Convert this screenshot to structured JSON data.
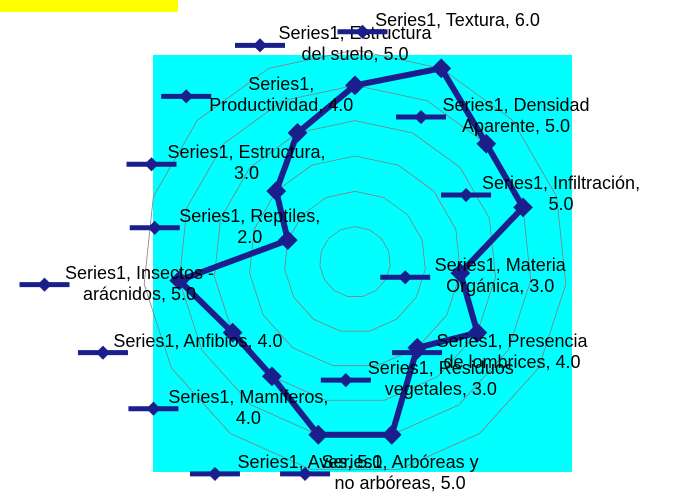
{
  "chart_data": {
    "type": "radar",
    "series": [
      {
        "name": "Series1",
        "color": "#1a1f8c",
        "values": [
          5,
          6,
          5,
          5,
          3,
          4,
          3,
          5,
          5,
          4,
          4,
          5,
          2,
          3,
          4
        ],
        "value_labels": [
          "Series1, Estructura del suelo, 5.0",
          "Series1, Textura, 6.0",
          "Series1, Densidad Aparente, 5.0",
          "Series1, Infiltración, 5.0",
          "Series1, Materia Orgánica, 3.0",
          "Series1, Presencia de lombrices, 4.0",
          "Series1, Residuos vegetales, 3.0",
          "Series1, Arbóreas y no arbóreas, 5.0",
          "Series1, Aves, 5.0",
          "Series1, Mamiferos, 4.0",
          "Series1, Anfibios, 4.0",
          "Series1, Insectos - arácnidos, 5.0",
          "Series1, Reptiles, 2.0",
          "Series1, Estructura, 3.0",
          "Series1, Productividad, 4.0"
        ]
      }
    ],
    "categories": [
      "Estructura del suelo",
      "Textura",
      "Densidad Aparente",
      "Infiltración",
      "Materia Orgánica",
      "Presencia de lombrices",
      "Residuos vegetales",
      "Arbóreas y no arbóreas",
      "Aves",
      "Mamiferos",
      "Anfibios",
      "Insectos - arácnidos",
      "Reptiles",
      "Estructura",
      "Productividad"
    ],
    "rlim": [
      0,
      6
    ],
    "rticks": [
      0,
      1,
      2,
      3,
      4,
      5,
      6
    ],
    "grid": true
  }
}
